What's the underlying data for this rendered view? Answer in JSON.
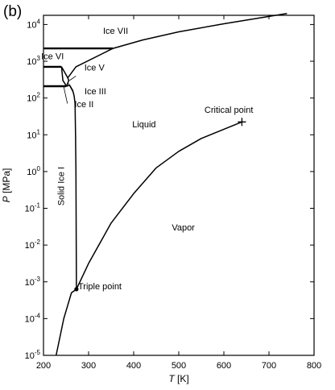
{
  "panel_label": "(b)",
  "chart_data": {
    "type": "line",
    "xlabel": "T [K]",
    "ylabel": "P [MPa]",
    "xlim": [
      200,
      800
    ],
    "ylim_log10": [
      -5,
      4.25
    ],
    "y_scale": "log",
    "grid": false,
    "legend": "none",
    "x_ticks": [
      200,
      300,
      400,
      500,
      600,
      700,
      800
    ],
    "y_ticks": [
      {
        "exp": -5,
        "label_base": "10",
        "label_exp": "-5"
      },
      {
        "exp": -4,
        "label_base": "10",
        "label_exp": "-4"
      },
      {
        "exp": -3,
        "label_base": "10",
        "label_exp": "-3"
      },
      {
        "exp": -2,
        "label_base": "10",
        "label_exp": "-2"
      },
      {
        "exp": -1,
        "label_base": "10",
        "label_exp": "-1"
      },
      {
        "exp": 0,
        "label_base": "10",
        "label_exp": "0"
      },
      {
        "exp": 1,
        "label_base": "10",
        "label_exp": "1"
      },
      {
        "exp": 2,
        "label_base": "10",
        "label_exp": "2"
      },
      {
        "exp": 3,
        "label_base": "10",
        "label_exp": "3"
      },
      {
        "exp": 4,
        "label_base": "10",
        "label_exp": "4"
      }
    ],
    "curves": [
      {
        "points": [
          [
            228,
            -5.0
          ],
          [
            245,
            -4.0
          ],
          [
            262,
            -3.3
          ],
          [
            273,
            -3.2
          ],
          [
            300,
            -2.5
          ],
          [
            350,
            -1.4
          ],
          [
            400,
            -0.6
          ],
          [
            450,
            0.1
          ],
          [
            500,
            0.55
          ],
          [
            550,
            0.9
          ],
          [
            600,
            1.15
          ],
          [
            640,
            1.35
          ]
        ]
      },
      {
        "points": [
          [
            273,
            -3.2
          ],
          [
            272,
            0.0
          ],
          [
            271,
            1.0
          ],
          [
            270,
            1.85
          ],
          [
            268,
            2.05
          ],
          [
            265,
            2.2
          ],
          [
            258,
            2.35
          ],
          [
            251,
            2.32
          ]
        ]
      },
      {
        "points": [
          [
            200,
            2.32
          ],
          [
            250,
            2.32
          ]
        ]
      },
      {
        "points": [
          [
            200,
            2.85
          ],
          [
            240,
            2.85
          ]
        ]
      },
      {
        "points": [
          [
            200,
            3.35
          ],
          [
            354,
            3.35
          ]
        ]
      },
      {
        "points": [
          [
            240,
            2.85
          ],
          [
            254,
            2.55
          ],
          [
            272,
            2.85
          ],
          [
            354,
            3.35
          ],
          [
            420,
            3.58
          ],
          [
            500,
            3.8
          ],
          [
            600,
            4.02
          ],
          [
            700,
            4.22
          ],
          [
            740,
            4.3
          ]
        ]
      },
      {
        "points": [
          [
            240,
            2.85
          ],
          [
            243,
            2.48
          ],
          [
            251,
            2.32
          ],
          [
            256,
            2.48
          ],
          [
            254,
            2.55
          ]
        ]
      }
    ],
    "markers": [
      {
        "type": "dot",
        "x": 273,
        "y": -3.2
      },
      {
        "type": "cross",
        "x": 640,
        "y": 1.35
      }
    ],
    "annotations": [
      {
        "text": "Ice VII",
        "x": 360,
        "y": 3.75
      },
      {
        "text": "Ice VI",
        "x": 220,
        "y": 3.05
      },
      {
        "text": "Ice V",
        "x": 313,
        "y": 2.75
      },
      {
        "text": "Ice III",
        "x": 315,
        "y": 2.1
      },
      {
        "text": "Ice II",
        "x": 290,
        "y": 1.75
      },
      {
        "text": "Liquid",
        "x": 423,
        "y": 1.2
      },
      {
        "text": "Critical point",
        "x": 611,
        "y": 1.6
      },
      {
        "text": "Solid Ice I",
        "x": 246,
        "y": -0.4,
        "rotate": true
      },
      {
        "text": "Vapor",
        "x": 510,
        "y": -1.6
      },
      {
        "text": "Triple point",
        "x": 325,
        "y": -3.2
      }
    ]
  }
}
